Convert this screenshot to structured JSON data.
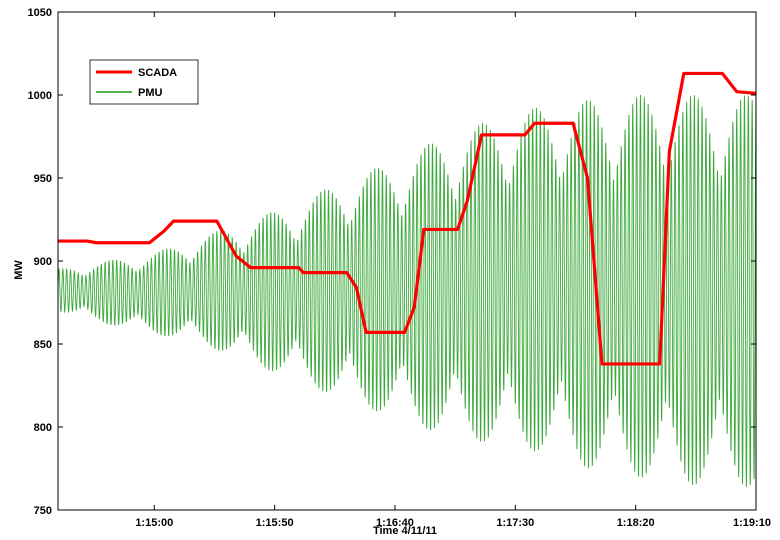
{
  "chart_data": {
    "type": "line",
    "xlabel": "Time 4/11/11",
    "ylabel": "MW",
    "x_start": "1:14:20",
    "x_end": "1:19:10",
    "x_ticks": [
      "1:15:00",
      "1:15:50",
      "1:16:40",
      "1:17:30",
      "1:18:20",
      "1:19:10"
    ],
    "y_ticks": [
      750,
      800,
      850,
      900,
      950,
      1000,
      1050
    ],
    "ylim": [
      750,
      1050
    ],
    "legend_position": "top-left",
    "grid": false,
    "series": [
      {
        "name": "SCADA",
        "color": "#ff0000",
        "x": [
          "1:14:20",
          "1:14:32",
          "1:14:36",
          "1:14:58",
          "1:15:04",
          "1:15:08",
          "1:15:26",
          "1:15:34",
          "1:15:40",
          "1:16:00",
          "1:16:02",
          "1:16:20",
          "1:16:24",
          "1:16:28",
          "1:16:44",
          "1:16:48",
          "1:16:52",
          "1:17:06",
          "1:17:10",
          "1:17:16",
          "1:17:34",
          "1:17:38",
          "1:17:54",
          "1:18:00",
          "1:18:06",
          "1:18:30",
          "1:18:34",
          "1:18:40",
          "1:18:56",
          "1:19:02",
          "1:19:10"
        ],
        "values": [
          912,
          912,
          911,
          911,
          918,
          924,
          924,
          903,
          896,
          896,
          893,
          893,
          884,
          857,
          857,
          872,
          919,
          919,
          936,
          976,
          976,
          983,
          983,
          950,
          838,
          838,
          966,
          1013,
          1013,
          1002,
          1001
        ]
      },
      {
        "name": "PMU",
        "color": "#1a9a1a",
        "envelope_x": [
          "1:14:20",
          "1:14:40",
          "1:15:00",
          "1:15:20",
          "1:15:40",
          "1:16:00",
          "1:16:20",
          "1:16:40",
          "1:17:00",
          "1:17:20",
          "1:17:40",
          "1:18:00",
          "1:18:20",
          "1:18:40",
          "1:19:00",
          "1:19:10"
        ],
        "upper": [
          895,
          900,
          905,
          915,
          925,
          935,
          950,
          960,
          975,
          985,
          993,
          997,
          1000,
          1000,
          1000,
          1000
        ],
        "lower": [
          870,
          862,
          856,
          850,
          838,
          828,
          815,
          806,
          795,
          790,
          785,
          775,
          770,
          765,
          765,
          763
        ],
        "oscillation_period_s": 1.6
      }
    ]
  }
}
